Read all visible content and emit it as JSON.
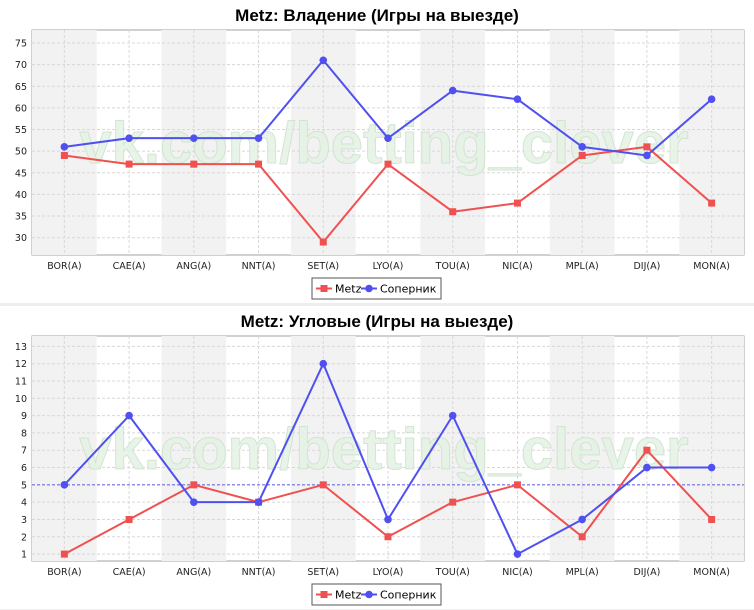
{
  "watermark": "vk.com/betting_clever",
  "colors": {
    "team": "#f05050",
    "opponent": "#5050f0",
    "band": "#f2f2f2",
    "reference": "#3030e0"
  },
  "chart_data": [
    {
      "type": "line",
      "title": "Metz: Владение (Игры на выезде)",
      "categories": [
        "BOR(A)",
        "CAE(A)",
        "ANG(A)",
        "NNT(A)",
        "SET(A)",
        "LYO(A)",
        "TOU(A)",
        "NIC(A)",
        "MPL(A)",
        "DIJ(A)",
        "MON(A)"
      ],
      "series": [
        {
          "name": "Metz",
          "marker": "square",
          "values": [
            49,
            47,
            47,
            47,
            29,
            47,
            36,
            38,
            49,
            51,
            38
          ]
        },
        {
          "name": "Соперник",
          "marker": "circle",
          "values": [
            51,
            53,
            53,
            53,
            71,
            53,
            64,
            62,
            51,
            49,
            62
          ]
        }
      ],
      "yticks": [
        30,
        35,
        40,
        45,
        50,
        55,
        60,
        65,
        70,
        75
      ],
      "ylim": [
        26,
        78
      ],
      "xlabel": "",
      "ylabel": "",
      "grid": true,
      "legend": "bottom"
    },
    {
      "type": "line",
      "title": "Metz: Угловые (Игры на выезде)",
      "categories": [
        "BOR(A)",
        "CAE(A)",
        "ANG(A)",
        "NNT(A)",
        "SET(A)",
        "LYO(A)",
        "TOU(A)",
        "NIC(A)",
        "MPL(A)",
        "DIJ(A)",
        "MON(A)"
      ],
      "series": [
        {
          "name": "Metz",
          "marker": "square",
          "values": [
            1,
            3,
            5,
            4,
            5,
            2,
            4,
            5,
            2,
            7,
            3
          ]
        },
        {
          "name": "Соперник",
          "marker": "circle",
          "values": [
            5,
            9,
            4,
            4,
            12,
            3,
            9,
            1,
            3,
            6,
            6
          ]
        }
      ],
      "yticks": [
        1,
        2,
        3,
        4,
        5,
        6,
        7,
        8,
        9,
        10,
        11,
        12,
        13
      ],
      "ylim": [
        0.6,
        13.6
      ],
      "reference_line": 5,
      "xlabel": "",
      "ylabel": "",
      "grid": true,
      "legend": "bottom"
    }
  ]
}
